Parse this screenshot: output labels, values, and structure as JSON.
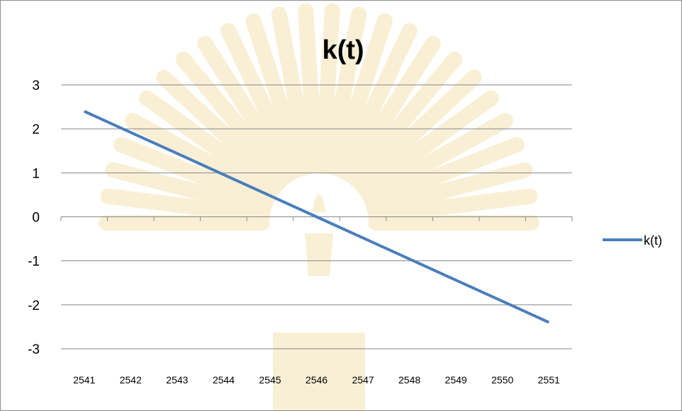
{
  "chart_data": {
    "type": "line",
    "title": "k(t)",
    "xlabel": "",
    "ylabel": "",
    "categories": [
      "2541",
      "2542",
      "2543",
      "2544",
      "2545",
      "2546",
      "2547",
      "2548",
      "2549",
      "2550",
      "2551"
    ],
    "series": [
      {
        "name": "k(t)",
        "values": [
          2.4,
          1.92,
          1.44,
          0.96,
          0.48,
          0.0,
          -0.48,
          -0.96,
          -1.44,
          -1.92,
          -2.4
        ]
      }
    ],
    "ylim": [
      -3,
      3
    ],
    "yticks": [
      "3",
      "2",
      "1",
      "0",
      "-1",
      "-2",
      "-3"
    ],
    "grid": true,
    "legend_position": "right"
  },
  "colors": {
    "series_line": "#4a7ebb",
    "grid": "#868686",
    "watermark": "#f3e3b3"
  }
}
